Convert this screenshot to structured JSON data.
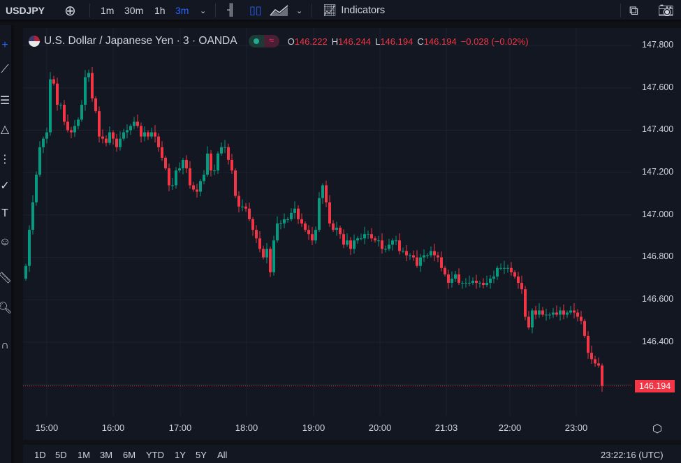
{
  "toolbar": {
    "symbol": "USDJPY",
    "intervals": [
      "1m",
      "30m",
      "1h",
      "3m"
    ],
    "active_interval": "3m",
    "indicators_label": "Indicators"
  },
  "legend": {
    "title": "U.S. Dollar / Japanese Yen · 3 · OANDA",
    "o_label": "O",
    "o": "146.222",
    "h_label": "H",
    "h": "146.244",
    "l_label": "L",
    "l": "146.194",
    "c_label": "C",
    "c": "146.194",
    "change": "−0.028 (−0.02%)"
  },
  "bottom": {
    "ranges": [
      "1D",
      "5D",
      "1M",
      "3M",
      "6M",
      "YTD",
      "1Y",
      "5Y",
      "All"
    ],
    "clock": "23:22:16 (UTC)"
  },
  "colors": {
    "up": "#089981",
    "down": "#f23645",
    "accent": "#2962ff"
  },
  "chart_data": {
    "type": "candlestick",
    "interval_minutes": 3,
    "first_open": 146.7,
    "current_price": "146.194",
    "ylim": [
      146.1,
      147.84
    ],
    "y_ticks": [
      "147.800",
      "147.600",
      "147.400",
      "147.200",
      "147.000",
      "146.800",
      "146.600",
      "146.400"
    ],
    "x_ticks": [
      "15:00",
      "16:00",
      "17:00",
      "18:00",
      "19:00",
      "20:00",
      "21:03",
      "22:00",
      "23:00"
    ],
    "closes": [
      146.76,
      146.93,
      147.06,
      147.19,
      147.32,
      147.36,
      147.39,
      147.64,
      147.62,
      147.52,
      147.52,
      147.44,
      147.4,
      147.39,
      147.42,
      147.45,
      147.52,
      147.65,
      147.67,
      147.55,
      147.49,
      147.37,
      147.36,
      147.34,
      147.39,
      147.36,
      147.32,
      147.36,
      147.39,
      147.4,
      147.42,
      147.44,
      147.42,
      147.37,
      147.39,
      147.37,
      147.39,
      147.37,
      147.32,
      147.27,
      147.22,
      147.14,
      147.14,
      147.21,
      147.22,
      147.26,
      147.22,
      147.14,
      147.12,
      147.11,
      147.16,
      147.19,
      147.29,
      147.21,
      147.21,
      147.29,
      147.32,
      147.32,
      147.26,
      147.21,
      147.09,
      147.04,
      147.04,
      147.03,
      146.98,
      146.93,
      146.89,
      146.84,
      146.8,
      146.84,
      146.73,
      146.88,
      146.96,
      146.96,
      146.98,
      146.98,
      147.01,
      147.03,
      146.98,
      146.96,
      146.93,
      146.91,
      146.88,
      146.93,
      147.08,
      147.14,
      147.06,
      146.96,
      146.93,
      146.94,
      146.91,
      146.86,
      146.88,
      146.84,
      146.88,
      146.89,
      146.89,
      146.91,
      146.91,
      146.89,
      146.88,
      146.88,
      146.84,
      146.84,
      146.86,
      146.88,
      146.88,
      146.83,
      146.83,
      146.81,
      146.81,
      146.8,
      146.76,
      146.8,
      146.81,
      146.81,
      146.83,
      146.81,
      146.8,
      146.75,
      146.72,
      146.68,
      146.7,
      146.72,
      146.68,
      146.68,
      146.68,
      146.68,
      146.69,
      146.68,
      146.68,
      146.67,
      146.68,
      146.7,
      146.71,
      146.75,
      146.75,
      146.75,
      146.75,
      146.73,
      146.71,
      146.68,
      146.65,
      146.52,
      146.47,
      146.55,
      146.53,
      146.55,
      146.53,
      146.53,
      146.53,
      146.54,
      146.53,
      146.55,
      146.53,
      146.54,
      146.55,
      146.54,
      146.52,
      146.5,
      146.43,
      146.35,
      146.32,
      146.3,
      146.29,
      146.194
    ]
  }
}
